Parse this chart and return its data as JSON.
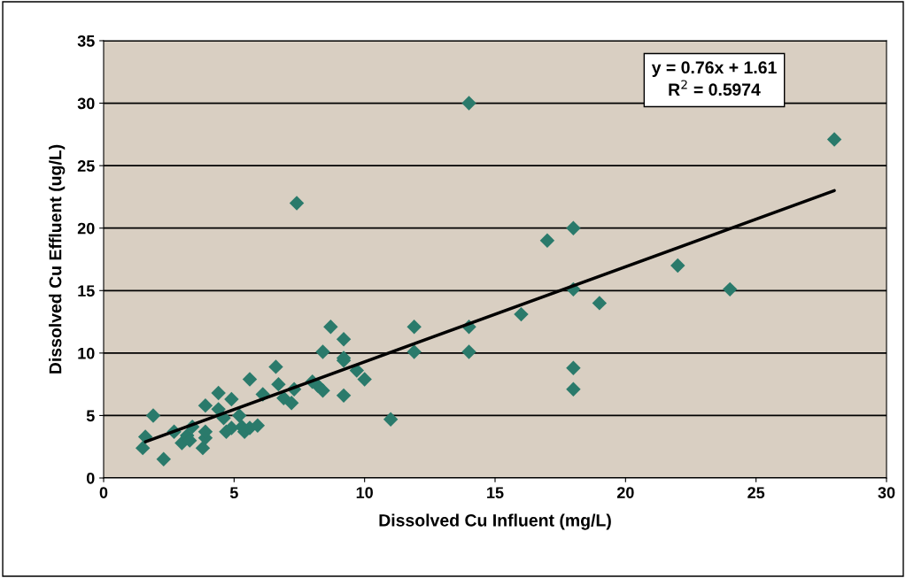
{
  "chart_data": {
    "type": "scatter",
    "xlabel": "Dissolved Cu Influent (mg/L)",
    "ylabel": "Dissolved Cu Effluent (ug/L)",
    "xlim": [
      0,
      30
    ],
    "xticks": [
      0,
      5,
      10,
      15,
      20,
      25,
      30
    ],
    "ylim": [
      0,
      35
    ],
    "yticks": [
      0,
      5,
      10,
      15,
      20,
      25,
      30,
      35
    ],
    "grid": "y",
    "marker": "diamond",
    "annotations": [
      "y = 0.76x + 1.61\nR$^{2}$ = 0.5974"
    ],
    "series": [
      {
        "color": "#2a7a6b",
        "x": [
          1.5,
          1.6,
          1.9,
          2.3,
          2.7,
          3.0,
          3.2,
          3.3,
          3.4,
          3.8,
          3.9,
          3.9,
          3.9,
          4.4,
          4.4,
          4.6,
          4.7,
          4.9,
          4.9,
          5.2,
          5.3,
          5.4,
          5.6,
          5.6,
          5.9,
          6.1,
          6.6,
          6.7,
          6.9,
          7.2,
          7.3,
          7.4,
          8.0,
          8.2,
          8.4,
          8.4,
          8.7,
          9.2,
          9.2,
          9.2,
          9.2,
          9.7,
          10.0,
          11.0,
          11.9,
          11.9,
          14.0,
          14.0,
          14.0,
          16.0,
          17.0,
          18.0,
          18.0,
          18.0,
          18.0,
          19.0,
          22.0,
          24.0,
          28.0
        ],
        "values": [
          2.4,
          3.3,
          5.0,
          1.5,
          3.7,
          2.8,
          3.4,
          3.0,
          4.1,
          2.4,
          3.2,
          3.7,
          5.8,
          6.8,
          5.5,
          4.8,
          3.7,
          6.3,
          4.0,
          5.0,
          4.1,
          3.7,
          4.0,
          7.9,
          4.2,
          6.7,
          8.9,
          7.5,
          6.4,
          6.0,
          7.1,
          22.0,
          7.7,
          7.4,
          7.0,
          10.1,
          12.1,
          11.1,
          9.4,
          9.6,
          6.6,
          8.6,
          7.9,
          4.7,
          12.1,
          10.1,
          30.0,
          12.1,
          10.1,
          13.1,
          19.0,
          20.0,
          15.1,
          8.8,
          7.1,
          14.0,
          17.0,
          15.1,
          27.1
        ]
      },
      {
        "type": "line",
        "color": "#000000",
        "marker": "none",
        "x": [
          1.6,
          28.0
        ],
        "values": [
          2.9,
          23.0
        ]
      }
    ]
  }
}
